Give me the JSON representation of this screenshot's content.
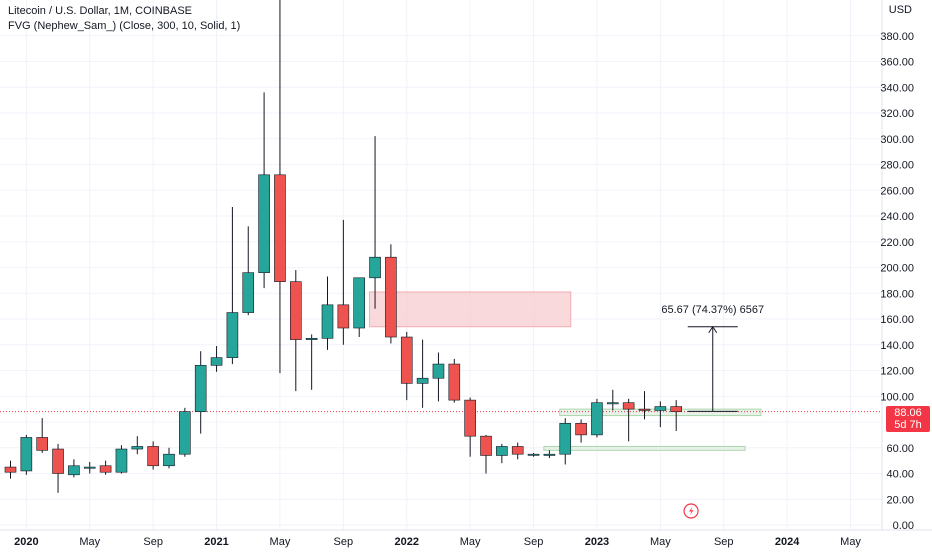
{
  "header": {
    "title": "Litecoin / U.S. Dollar, 1M, COINBASE",
    "indicator": "FVG (Nephew_Sam_) (Close, 300, 10, Solid, 1)"
  },
  "currency_label": "USD",
  "current_price": {
    "value": "88.06",
    "countdown": "5d 7h"
  },
  "colors": {
    "up": "#26a69a",
    "down": "#ef5350",
    "grid": "#f0f3fa",
    "price_line": "#f23645",
    "fvg_bear_fill": "#f8d3d5",
    "fvg_bull_fill": "#e3f1e4"
  },
  "chart_data": {
    "type": "candlestick",
    "ylim": [
      0,
      400
    ],
    "y_ticks": [
      "0.00",
      "20.00",
      "40.00",
      "60.00",
      "80.00",
      "100.00",
      "120.00",
      "140.00",
      "160.00",
      "180.00",
      "200.00",
      "220.00",
      "240.00",
      "260.00",
      "280.00",
      "300.00",
      "320.00",
      "340.00",
      "360.00",
      "380.00"
    ],
    "x_ticks": [
      {
        "label": "2020",
        "index": 1,
        "bold": true
      },
      {
        "label": "May",
        "index": 5
      },
      {
        "label": "Sep",
        "index": 9
      },
      {
        "label": "2021",
        "index": 13,
        "bold": true
      },
      {
        "label": "May",
        "index": 17
      },
      {
        "label": "Sep",
        "index": 21
      },
      {
        "label": "2022",
        "index": 25,
        "bold": true
      },
      {
        "label": "May",
        "index": 29
      },
      {
        "label": "Sep",
        "index": 33
      },
      {
        "label": "2023",
        "index": 37,
        "bold": true
      },
      {
        "label": "May",
        "index": 41
      },
      {
        "label": "Sep",
        "index": 45
      },
      {
        "label": "2024",
        "index": 49,
        "bold": true
      },
      {
        "label": "May",
        "index": 53
      }
    ],
    "candles": [
      {
        "o": 45,
        "h": 50,
        "l": 36,
        "c": 41
      },
      {
        "o": 42,
        "h": 70,
        "l": 39,
        "c": 68
      },
      {
        "o": 68,
        "h": 83,
        "l": 56,
        "c": 58
      },
      {
        "o": 59,
        "h": 63,
        "l": 25,
        "c": 40
      },
      {
        "o": 39,
        "h": 51,
        "l": 37,
        "c": 46
      },
      {
        "o": 45,
        "h": 49,
        "l": 40,
        "c": 45
      },
      {
        "o": 46,
        "h": 50,
        "l": 39,
        "c": 41
      },
      {
        "o": 41,
        "h": 62,
        "l": 40,
        "c": 59
      },
      {
        "o": 59,
        "h": 69,
        "l": 55,
        "c": 61
      },
      {
        "o": 61,
        "h": 65,
        "l": 43,
        "c": 46
      },
      {
        "o": 46,
        "h": 60,
        "l": 44,
        "c": 55
      },
      {
        "o": 55,
        "h": 91,
        "l": 53,
        "c": 88
      },
      {
        "o": 88,
        "h": 135,
        "l": 71,
        "c": 124
      },
      {
        "o": 124,
        "h": 139,
        "l": 119,
        "c": 130
      },
      {
        "o": 130,
        "h": 247,
        "l": 125,
        "c": 165
      },
      {
        "o": 165,
        "h": 232,
        "l": 163,
        "c": 196
      },
      {
        "o": 196,
        "h": 336,
        "l": 184,
        "c": 272
      },
      {
        "o": 272,
        "h": 413,
        "l": 118,
        "c": 189
      },
      {
        "o": 189,
        "h": 198,
        "l": 104,
        "c": 144
      },
      {
        "o": 144,
        "h": 148,
        "l": 105,
        "c": 145
      },
      {
        "o": 145,
        "h": 193,
        "l": 136,
        "c": 171
      },
      {
        "o": 171,
        "h": 237,
        "l": 140,
        "c": 153
      },
      {
        "o": 153,
        "h": 192,
        "l": 146,
        "c": 192
      },
      {
        "o": 192,
        "h": 302,
        "l": 168,
        "c": 208
      },
      {
        "o": 208,
        "h": 218,
        "l": 141,
        "c": 146
      },
      {
        "o": 146,
        "h": 150,
        "l": 97,
        "c": 110
      },
      {
        "o": 110,
        "h": 144,
        "l": 91,
        "c": 114
      },
      {
        "o": 114,
        "h": 134,
        "l": 96,
        "c": 125
      },
      {
        "o": 125,
        "h": 129,
        "l": 95,
        "c": 97
      },
      {
        "o": 97,
        "h": 99,
        "l": 53,
        "c": 69
      },
      {
        "o": 69,
        "h": 70,
        "l": 40,
        "c": 54
      },
      {
        "o": 54,
        "h": 63,
        "l": 48,
        "c": 61
      },
      {
        "o": 61,
        "h": 64,
        "l": 51,
        "c": 55
      },
      {
        "o": 55,
        "h": 56,
        "l": 53,
        "c": 55
      },
      {
        "o": 54,
        "h": 58,
        "l": 52,
        "c": 55
      },
      {
        "o": 55,
        "h": 83,
        "l": 47,
        "c": 79
      },
      {
        "o": 79,
        "h": 82,
        "l": 64,
        "c": 70
      },
      {
        "o": 70,
        "h": 98,
        "l": 68,
        "c": 95
      },
      {
        "o": 95,
        "h": 105,
        "l": 89,
        "c": 95
      },
      {
        "o": 95,
        "h": 98,
        "l": 65,
        "c": 90
      },
      {
        "o": 90,
        "h": 104,
        "l": 82,
        "c": 89
      },
      {
        "o": 89,
        "h": 96,
        "l": 76,
        "c": 92
      },
      {
        "o": 92,
        "h": 97,
        "l": 73,
        "c": 88
      }
    ],
    "fvg_zones": [
      {
        "type": "bearish",
        "top": 181,
        "bottom": 154,
        "start_index": 23,
        "end_index": 35
      },
      {
        "type": "bullish",
        "top": 90,
        "bottom": 85,
        "start_index": 35,
        "end_index": 47
      },
      {
        "type": "bullish",
        "top": 61,
        "bottom": 58,
        "start_index": 34,
        "end_index": 46
      }
    ],
    "measurement": {
      "label": "65.67 (74.37%) 6567",
      "from": 88.3,
      "to": 153.97,
      "index": 45
    }
  }
}
